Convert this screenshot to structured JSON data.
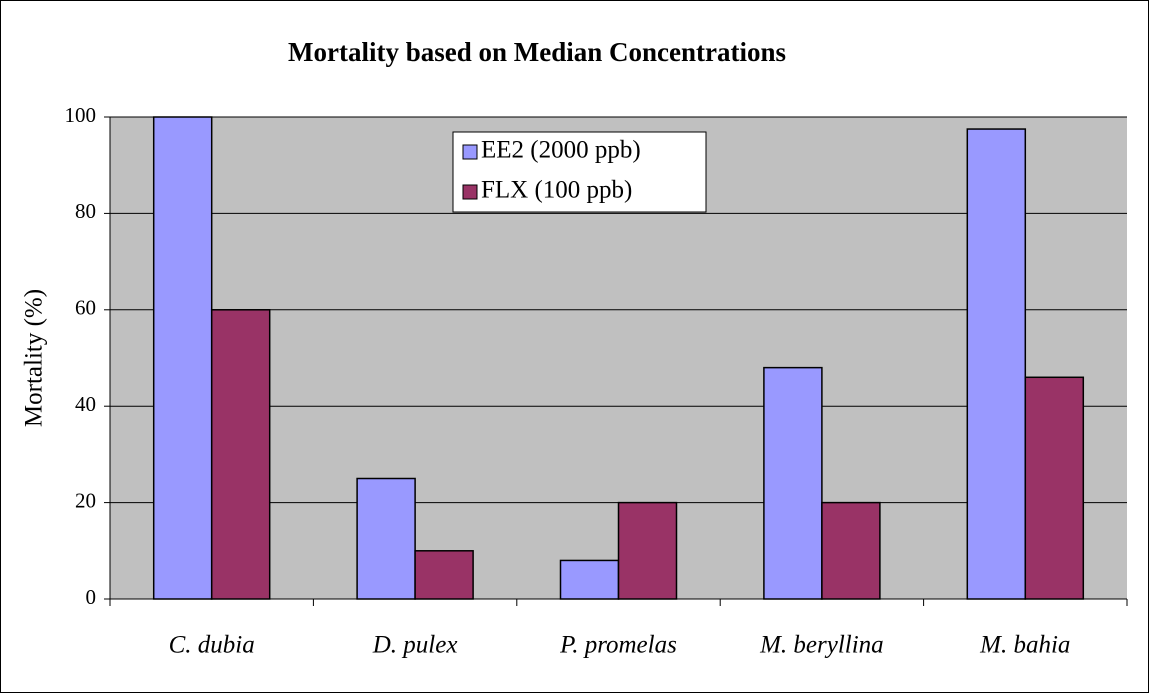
{
  "chart_data": {
    "type": "bar",
    "title": "Mortality based on Median Concentrations",
    "y_label": "Mortality (%)",
    "categories": [
      "C. dubia",
      "D. pulex",
      "P. promelas",
      "M. beryllina",
      "M. bahia"
    ],
    "series": [
      {
        "name": "EE2 (2000 ppb)",
        "color": "#9999ff",
        "values": [
          100,
          25,
          8,
          48,
          97.5
        ]
      },
      {
        "name": "FLX (100 ppb)",
        "color": "#993366",
        "values": [
          60,
          10,
          20,
          20,
          46
        ]
      }
    ],
    "ylim": [
      0,
      100
    ],
    "yticks": [
      0,
      20,
      40,
      60,
      80,
      100
    ],
    "grid": true,
    "legend": "top-center"
  }
}
